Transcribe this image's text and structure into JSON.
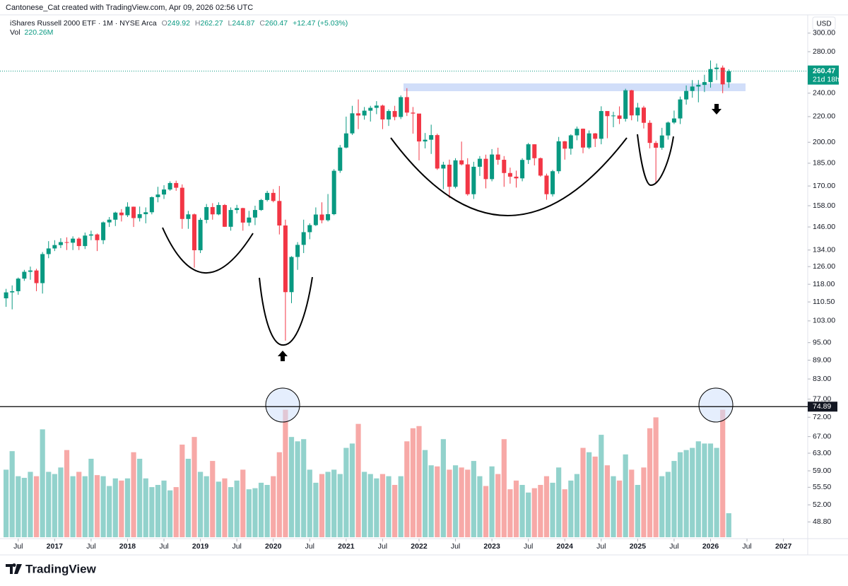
{
  "header": {
    "credit": "Cantonese_Cat created with TradingView.com, Apr 09, 2026 02:56 UTC",
    "brand": "TradingView"
  },
  "chart_data": {
    "type": "candlestick",
    "title": "iShares Russell 2000 ETF · 1M · NYSE Arca",
    "legend": {
      "open_label": "O",
      "high_label": "H",
      "low_label": "L",
      "close_label": "C",
      "change": "+12.47 (+5.03%)",
      "volume_title": "Vol",
      "volume_text": "220.26M"
    },
    "currency": "USD",
    "countdown": "21d 18h",
    "price_line": 74.89,
    "log_scale": true,
    "grid": false,
    "up_color": "#089981",
    "down_color": "#f23645",
    "volume_up_color": "#92d2cc",
    "volume_down_color": "#f7a9a7",
    "ylim": [
      46.1,
      309.5
    ],
    "yticks": [
      {
        "value": 300,
        "label": "300.00"
      },
      {
        "value": 280,
        "label": "280.00"
      },
      {
        "value": 240,
        "label": "240.00"
      },
      {
        "value": 220,
        "label": "220.00"
      },
      {
        "value": 200,
        "label": "200.00"
      },
      {
        "value": 185,
        "label": "185.00"
      },
      {
        "value": 170,
        "label": "170.00"
      },
      {
        "value": 158,
        "label": "158.00"
      },
      {
        "value": 146,
        "label": "146.00"
      },
      {
        "value": 134,
        "label": "134.00"
      },
      {
        "value": 126,
        "label": "126.00"
      },
      {
        "value": 118,
        "label": "118.00"
      },
      {
        "value": 110.5,
        "label": "110.50"
      },
      {
        "value": 103,
        "label": "103.00"
      },
      {
        "value": 95,
        "label": "95.00"
      },
      {
        "value": 89,
        "label": "89.00"
      },
      {
        "value": 83,
        "label": "83.00"
      },
      {
        "value": 77,
        "label": "77.00"
      },
      {
        "value": 72,
        "label": "72.00"
      },
      {
        "value": 67,
        "label": "67.00"
      },
      {
        "value": 63,
        "label": "63.00"
      },
      {
        "value": 59,
        "label": "59.00"
      },
      {
        "value": 55.5,
        "label": "55.50"
      },
      {
        "value": 52,
        "label": "52.00"
      },
      {
        "value": 48.8,
        "label": "48.80"
      }
    ],
    "xlim": [
      "2016-04",
      "2027-05"
    ],
    "xticks": [
      {
        "value": "2016-07",
        "label": "Jul"
      },
      {
        "value": "2017-01",
        "label": "2017"
      },
      {
        "value": "2017-07",
        "label": "Jul"
      },
      {
        "value": "2018-01",
        "label": "2018"
      },
      {
        "value": "2018-07",
        "label": "Jul"
      },
      {
        "value": "2019-01",
        "label": "2019"
      },
      {
        "value": "2019-07",
        "label": "Jul"
      },
      {
        "value": "2020-01",
        "label": "2020"
      },
      {
        "value": "2020-07",
        "label": "Jul"
      },
      {
        "value": "2021-01",
        "label": "2021"
      },
      {
        "value": "2021-07",
        "label": "Jul"
      },
      {
        "value": "2022-01",
        "label": "2022"
      },
      {
        "value": "2022-07",
        "label": "Jul"
      },
      {
        "value": "2023-01",
        "label": "2023"
      },
      {
        "value": "2023-07",
        "label": "Jul"
      },
      {
        "value": "2024-01",
        "label": "2024"
      },
      {
        "value": "2024-07",
        "label": "Jul"
      },
      {
        "value": "2025-01",
        "label": "2025"
      },
      {
        "value": "2025-07",
        "label": "Jul"
      },
      {
        "value": "2026-01",
        "label": "2026"
      },
      {
        "value": "2026-07",
        "label": "Jul"
      },
      {
        "value": "2027-01",
        "label": "2027"
      }
    ],
    "volume_lim": [
      0,
      1200
    ],
    "x": [
      "2016-05",
      "2016-06",
      "2016-07",
      "2016-08",
      "2016-09",
      "2016-10",
      "2016-11",
      "2016-12",
      "2017-01",
      "2017-02",
      "2017-03",
      "2017-04",
      "2017-05",
      "2017-06",
      "2017-07",
      "2017-08",
      "2017-09",
      "2017-10",
      "2017-11",
      "2017-12",
      "2018-01",
      "2018-02",
      "2018-03",
      "2018-04",
      "2018-05",
      "2018-06",
      "2018-07",
      "2018-08",
      "2018-09",
      "2018-10",
      "2018-11",
      "2018-12",
      "2019-01",
      "2019-02",
      "2019-03",
      "2019-04",
      "2019-05",
      "2019-06",
      "2019-07",
      "2019-08",
      "2019-09",
      "2019-10",
      "2019-11",
      "2019-12",
      "2020-01",
      "2020-02",
      "2020-03",
      "2020-04",
      "2020-05",
      "2020-06",
      "2020-07",
      "2020-08",
      "2020-09",
      "2020-10",
      "2020-11",
      "2020-12",
      "2021-01",
      "2021-02",
      "2021-03",
      "2021-04",
      "2021-05",
      "2021-06",
      "2021-07",
      "2021-08",
      "2021-09",
      "2021-10",
      "2021-11",
      "2021-12",
      "2022-01",
      "2022-02",
      "2022-03",
      "2022-04",
      "2022-05",
      "2022-06",
      "2022-07",
      "2022-08",
      "2022-09",
      "2022-10",
      "2022-11",
      "2022-12",
      "2023-01",
      "2023-02",
      "2023-03",
      "2023-04",
      "2023-05",
      "2023-06",
      "2023-07",
      "2023-08",
      "2023-09",
      "2023-10",
      "2023-11",
      "2023-12",
      "2024-01",
      "2024-02",
      "2024-03",
      "2024-04",
      "2024-05",
      "2024-06",
      "2024-07",
      "2024-08",
      "2024-09",
      "2024-10",
      "2024-11",
      "2024-12",
      "2025-01",
      "2025-02",
      "2025-03",
      "2025-04",
      "2025-05",
      "2025-06",
      "2025-07",
      "2025-08",
      "2025-09",
      "2025-10",
      "2025-11",
      "2025-12",
      "2026-01",
      "2026-02",
      "2026-03",
      "2026-04"
    ],
    "open": [
      112.0,
      114.5,
      115.0,
      120.5,
      123.6,
      124.2,
      118.5,
      132.0,
      134.8,
      136.5,
      138.0,
      137.7,
      139.8,
      136.0,
      141.4,
      142.0,
      139.0,
      148.5,
      150.0,
      154.0,
      152.5,
      157.4,
      150.9,
      153.1,
      154.2,
      163.1,
      164.7,
      167.8,
      171.9,
      168.9,
      150.4,
      153.0,
      133.9,
      149.9,
      157.2,
      153.0,
      158.4,
      146.1,
      155.5,
      156.6,
      148.4,
      151.2,
      155.5,
      161.4,
      165.7,
      160.8,
      146.8,
      114.6,
      130.6,
      136.6,
      143.2,
      147.0,
      152.9,
      149.7,
      153.1,
      179.9,
      196.1,
      206.7,
      222.7,
      220.9,
      224.9,
      227.3,
      229.2,
      217.7,
      224.6,
      219.7,
      236.5,
      223.3,
      222.5,
      200.6,
      201.9,
      205.4,
      181.4,
      184.0,
      169.5,
      187.0,
      184.2,
      164.9,
      182.6,
      188.1,
      174.4,
      191.1,
      187.4,
      178.4,
      176.0,
      174.9,
      187.3,
      198.5,
      188.5,
      176.7,
      164.9,
      179.6,
      200.7,
      195.3,
      205.2,
      210.3,
      196.1,
      206.7,
      202.6,
      224.6,
      220.4,
      220.9,
      218.2,
      242.6,
      221.0,
      227.5,
      215.0,
      199.5,
      196.0,
      205.1,
      215.2,
      218.5,
      234.5,
      242.0,
      246.0,
      247.5,
      250.1,
      262.5,
      263.9,
      249.92
    ],
    "high": [
      116.0,
      117.5,
      121.0,
      124.5,
      126.0,
      125.0,
      133.0,
      138.5,
      139.0,
      140.0,
      140.5,
      141.0,
      140.5,
      143.0,
      144.0,
      142.5,
      149.0,
      151.5,
      154.5,
      156.0,
      160.0,
      157.5,
      157.5,
      157.0,
      163.5,
      169.5,
      170.5,
      173.0,
      173.4,
      171.0,
      155.0,
      153.5,
      151.0,
      159.0,
      159.5,
      160.0,
      159.0,
      157.0,
      158.5,
      156.8,
      155.0,
      158.0,
      162.0,
      167.0,
      168.0,
      170.0,
      150.0,
      131.0,
      138.0,
      150.0,
      148.0,
      157.0,
      160.0,
      165.0,
      181.0,
      198.0,
      220.0,
      229.0,
      234.5,
      228.0,
      229.0,
      233.0,
      230.0,
      226.0,
      229.0,
      238.0,
      244.5,
      228.0,
      222.0,
      207.0,
      213.5,
      206.5,
      186.0,
      187.5,
      188.5,
      200.5,
      188.5,
      186.0,
      190.0,
      191.0,
      195.0,
      196.0,
      190.0,
      182.0,
      180.0,
      188.5,
      199.5,
      198.5,
      189.0,
      178.0,
      180.5,
      204.0,
      201.0,
      206.0,
      212.0,
      210.5,
      209.0,
      207.0,
      228.6,
      224.0,
      224.0,
      228.5,
      244.0,
      243.0,
      231.5,
      229.0,
      217.0,
      201.0,
      211.0,
      216.0,
      225.0,
      237.0,
      247.0,
      252.0,
      252.0,
      257.0,
      271.0,
      268.0,
      266.0,
      262.27
    ],
    "low": [
      108.5,
      107.5,
      113.5,
      119.5,
      120.0,
      115.0,
      114.0,
      130.0,
      133.5,
      135.0,
      134.0,
      134.0,
      134.0,
      134.5,
      139.0,
      133.5,
      137.0,
      146.0,
      146.5,
      149.0,
      151.5,
      146.0,
      149.0,
      148.0,
      153.0,
      160.0,
      162.0,
      167.0,
      167.0,
      145.0,
      145.0,
      125.5,
      132.5,
      148.0,
      150.0,
      152.5,
      146.0,
      144.0,
      153.5,
      144.0,
      146.5,
      147.0,
      155.0,
      160.5,
      160.0,
      142.0,
      95.7,
      110.0,
      124.5,
      132.5,
      139.5,
      146.5,
      148.0,
      149.0,
      152.5,
      178.5,
      195.5,
      205.5,
      210.0,
      217.5,
      216.0,
      222.0,
      210.0,
      212.5,
      217.0,
      218.0,
      220.5,
      206.5,
      187.0,
      195.5,
      191.5,
      180.5,
      168.0,
      162.5,
      168.5,
      183.5,
      164.0,
      162.0,
      176.5,
      168.5,
      173.0,
      184.0,
      169.5,
      171.5,
      169.0,
      173.0,
      184.5,
      183.5,
      176.0,
      161.5,
      163.5,
      178.0,
      187.5,
      191.0,
      201.5,
      192.0,
      195.0,
      196.5,
      198.5,
      203.0,
      211.5,
      214.0,
      216.0,
      217.0,
      216.0,
      210.5,
      195.5,
      171.5,
      194.5,
      202.0,
      214.0,
      214.0,
      230.0,
      236.0,
      232.0,
      241.0,
      245.0,
      252.0,
      240.0,
      244.87
    ],
    "close": [
      114.5,
      115.0,
      120.5,
      123.6,
      124.2,
      118.5,
      132.0,
      134.8,
      136.5,
      138.0,
      137.7,
      139.8,
      136.0,
      141.4,
      142.0,
      139.0,
      148.5,
      150.0,
      154.0,
      152.5,
      157.4,
      150.9,
      153.1,
      154.2,
      163.1,
      164.7,
      167.8,
      171.9,
      168.9,
      150.4,
      153.0,
      133.9,
      149.9,
      157.2,
      153.0,
      158.4,
      146.1,
      155.5,
      156.6,
      148.4,
      151.2,
      155.5,
      161.4,
      165.7,
      160.8,
      146.8,
      114.6,
      130.6,
      136.6,
      143.2,
      147.0,
      152.9,
      149.7,
      153.1,
      179.9,
      196.1,
      206.7,
      222.7,
      220.9,
      224.9,
      227.3,
      229.2,
      217.7,
      224.6,
      219.7,
      236.5,
      223.3,
      222.5,
      200.6,
      201.9,
      205.4,
      181.4,
      184.0,
      169.5,
      187.0,
      184.2,
      164.9,
      182.6,
      188.1,
      174.4,
      191.1,
      187.4,
      178.4,
      176.0,
      174.9,
      187.3,
      198.5,
      188.5,
      176.7,
      164.9,
      179.6,
      200.7,
      195.3,
      205.2,
      210.3,
      196.1,
      206.7,
      202.6,
      224.6,
      220.4,
      220.9,
      218.2,
      242.6,
      221.0,
      227.5,
      215.0,
      199.5,
      196.0,
      205.1,
      215.2,
      218.5,
      234.5,
      242.0,
      246.0,
      247.5,
      250.1,
      262.5,
      263.9,
      248.0,
      260.47
    ],
    "volume": [
      620,
      790,
      560,
      545,
      600,
      560,
      990,
      600,
      580,
      640,
      800,
      560,
      600,
      560,
      720,
      570,
      560,
      470,
      540,
      520,
      540,
      780,
      720,
      540,
      460,
      480,
      520,
      430,
      460,
      850,
      720,
      920,
      600,
      560,
      700,
      510,
      540,
      460,
      520,
      620,
      440,
      450,
      500,
      480,
      560,
      780,
      1170,
      920,
      880,
      900,
      620,
      500,
      580,
      600,
      620,
      580,
      820,
      860,
      1040,
      600,
      580,
      540,
      580,
      560,
      480,
      560,
      880,
      1000,
      1020,
      800,
      660,
      650,
      900,
      620,
      660,
      640,
      620,
      700,
      560,
      470,
      650,
      580,
      900,
      440,
      520,
      480,
      410,
      450,
      480,
      560,
      500,
      640,
      440,
      520,
      580,
      820,
      780,
      740,
      940,
      660,
      560,
      520,
      760,
      620,
      480,
      640,
      1000,
      1100,
      560,
      600,
      700,
      780,
      800,
      820,
      880,
      860,
      860,
      820,
      1170,
      220.26
    ]
  }
}
